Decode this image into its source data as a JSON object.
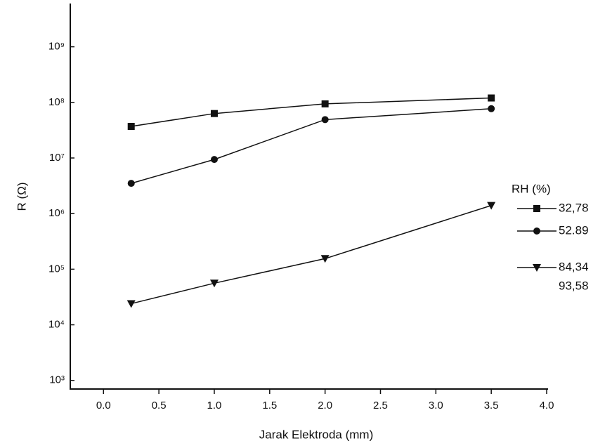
{
  "chart_data": {
    "type": "line",
    "x_label": "Jarak Elektroda (mm)",
    "y_label": "R (Ω)",
    "legend_title": "RH (%)",
    "legend": "right",
    "ylog": true,
    "xlim": [
      -0.3,
      4.0
    ],
    "xticks": [
      {
        "value": 0,
        "label": "0.0"
      },
      0.5,
      {
        "value": 1,
        "label": "1.0"
      },
      1.5,
      {
        "value": 2,
        "label": "2.0"
      },
      2.5,
      {
        "value": 3,
        "label": "3.0"
      },
      3.5,
      {
        "value": 4,
        "label": "4.0"
      }
    ],
    "ylim": [
      700,
      6000000000
    ],
    "yticks": [
      {
        "value": 1000,
        "label": "10³"
      },
      {
        "value": 10000,
        "label": "10⁴"
      },
      {
        "value": 100000,
        "label": "10⁵"
      },
      {
        "value": 1000000,
        "label": "10⁶"
      },
      {
        "value": 10000000,
        "label": "10⁷"
      },
      {
        "value": 100000000,
        "label": "10⁸"
      },
      {
        "value": 1000000000,
        "label": "10⁹"
      }
    ],
    "x": [
      0.25,
      1,
      2,
      3.5
    ],
    "series": [
      {
        "name": "32,78",
        "color": "#111111",
        "marker": "square",
        "values": [
          37000000,
          63000000,
          94000000,
          120000000
        ]
      },
      {
        "name": "52.89",
        "color": "#111111",
        "marker": "circle",
        "values": [
          3500000,
          9400000,
          49000000,
          77000000
        ]
      },
      {
        "name": "84,34",
        "color": "#111111",
        "marker": "triangle-down",
        "values": [
          24000,
          56000,
          155000,
          1400000
        ]
      },
      {
        "name": "93,58",
        "color": "#111111",
        "marker": "none",
        "values": [
          null,
          null,
          null,
          null
        ]
      }
    ]
  }
}
